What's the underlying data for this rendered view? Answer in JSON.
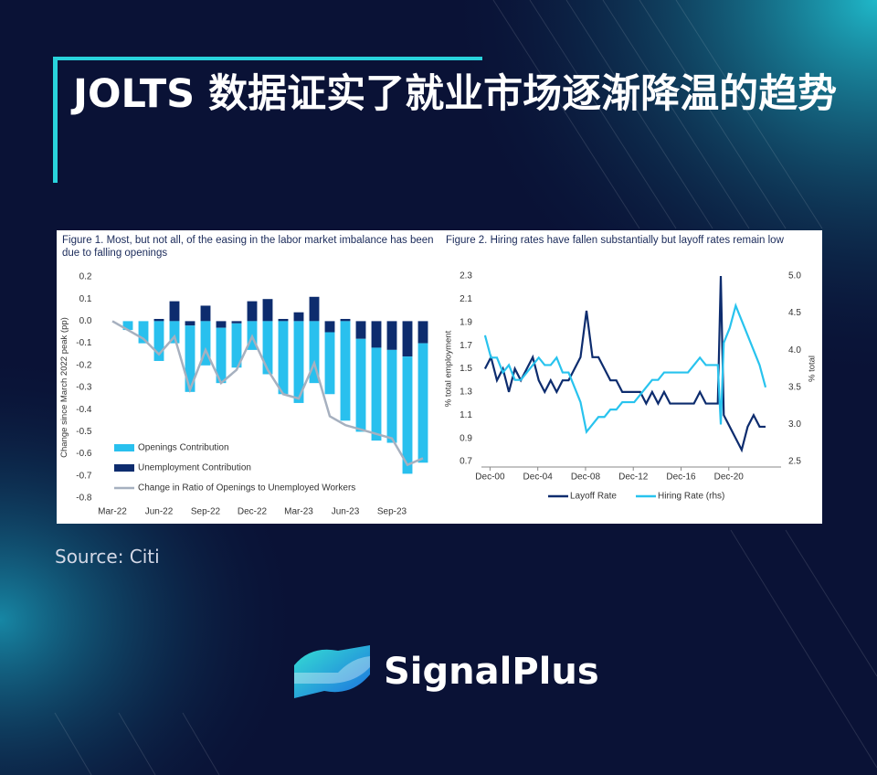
{
  "title": "JOLTS 数据证实了就业市场逐渐降温的趋势",
  "source": "Source: Citi",
  "brand": "SignalPlus",
  "chart_data": [
    {
      "type": "bar",
      "stacked": true,
      "title": "Figure 1. Most, but not all, of the easing in the labor market imbalance has been due to falling openings",
      "y_label": "Change since March 2022 peak (pp)",
      "categories": [
        "Mar-22",
        null,
        null,
        "Jun-22",
        null,
        null,
        "Sep-22",
        null,
        null,
        "Dec-22",
        null,
        null,
        "Mar-23",
        null,
        null,
        "Jun-23",
        null,
        null,
        "Sep-23",
        null,
        null
      ],
      "series": [
        {
          "name": "Openings Contribution",
          "color": "#29c0ee",
          "values": [
            0,
            -0.04,
            -0.1,
            -0.18,
            -0.1,
            -0.3,
            -0.2,
            -0.25,
            -0.2,
            -0.13,
            -0.24,
            -0.33,
            -0.37,
            -0.28,
            -0.28,
            -0.45,
            -0.42,
            -0.42,
            -0.42,
            -0.53,
            -0.54
          ]
        },
        {
          "name": "Unemployment Contribution",
          "color": "#0d2c6e",
          "values": [
            0,
            0,
            0,
            0.01,
            0.09,
            -0.02,
            0.07,
            -0.03,
            -0.01,
            0.09,
            0.1,
            0.01,
            0.04,
            0.11,
            -0.05,
            0.01,
            -0.08,
            -0.12,
            -0.13,
            -0.16,
            -0.1
          ]
        },
        {
          "name": "Change in Ratio of Openings to Unemployed Workers",
          "color": "#a6b0bf",
          "type": "line",
          "values": [
            0,
            -0.04,
            -0.08,
            -0.15,
            -0.07,
            -0.31,
            -0.13,
            -0.28,
            -0.22,
            -0.07,
            -0.22,
            -0.33,
            -0.35,
            -0.19,
            -0.43,
            -0.47,
            -0.49,
            -0.51,
            -0.53,
            -0.65,
            -0.62
          ]
        }
      ],
      "ylim": [
        -0.8,
        0.2
      ],
      "yticks": [
        0.2,
        0.1,
        {
          "value": 0,
          "label": "0.0"
        },
        -0.1,
        -0.2,
        -0.3,
        -0.4,
        -0.5,
        -0.6,
        -0.7,
        -0.8
      ]
    },
    {
      "type": "line",
      "title": "Figure 2. Hiring rates have fallen substantially but layoff rates remain low",
      "y_label": "% total employment",
      "y2_label": "% total",
      "x": [
        2000.5,
        2001,
        2001.5,
        2002,
        2002.5,
        2003,
        2003.5,
        2004,
        2004.5,
        2005,
        2005.5,
        2006,
        2006.5,
        2007,
        2007.5,
        2008,
        2008.5,
        2009,
        2009.5,
        2010,
        2010.5,
        2011,
        2011.5,
        2012,
        2012.5,
        2013,
        2013.5,
        2014,
        2014.5,
        2015,
        2015.5,
        2016,
        2016.5,
        2017,
        2017.5,
        2018,
        2018.5,
        2019,
        2019.5,
        2020,
        2020.25,
        2020.5,
        2021,
        2021.5,
        2022,
        2022.5,
        2023,
        2023.5,
        2024
      ],
      "series": [
        {
          "name": "Layoff Rate",
          "color": "#0d2c6e",
          "values": [
            1.5,
            1.6,
            1.4,
            1.5,
            1.3,
            1.5,
            1.4,
            1.5,
            1.6,
            1.4,
            1.3,
            1.4,
            1.3,
            1.4,
            1.4,
            1.5,
            1.6,
            2.0,
            1.6,
            1.6,
            1.5,
            1.4,
            1.4,
            1.3,
            1.3,
            1.3,
            1.3,
            1.2,
            1.3,
            1.2,
            1.3,
            1.2,
            1.2,
            1.2,
            1.2,
            1.2,
            1.3,
            1.2,
            1.2,
            1.2,
            2.3,
            1.1,
            1.0,
            0.9,
            0.8,
            1.0,
            1.1,
            1.0,
            1.0
          ]
        },
        {
          "name": "Hiring Rate (rhs)",
          "color": "#28c3ee",
          "axis": "y2",
          "values": [
            4.2,
            3.9,
            3.9,
            3.7,
            3.8,
            3.6,
            3.6,
            3.7,
            3.8,
            3.9,
            3.8,
            3.8,
            3.9,
            3.7,
            3.7,
            3.5,
            3.3,
            2.9,
            3.0,
            3.1,
            3.1,
            3.2,
            3.2,
            3.3,
            3.3,
            3.3,
            3.4,
            3.5,
            3.6,
            3.6,
            3.7,
            3.7,
            3.7,
            3.7,
            3.7,
            3.8,
            3.9,
            3.8,
            3.8,
            3.8,
            3.0,
            4.1,
            4.3,
            4.6,
            4.4,
            4.2,
            4.0,
            3.8,
            3.5
          ]
        }
      ],
      "xlim": [
        2000.2,
        2025.3
      ],
      "xticks": [
        {
          "value": 2000.92,
          "label": "Dec-00"
        },
        {
          "value": 2004.92,
          "label": "Dec-04"
        },
        {
          "value": 2008.92,
          "label": "Dec-08"
        },
        {
          "value": 2012.92,
          "label": "Dec-12"
        },
        {
          "value": 2016.92,
          "label": "Dec-16"
        },
        {
          "value": 2020.92,
          "label": "Dec-20"
        }
      ],
      "ylim": [
        0.7,
        2.3
      ],
      "yticks": [
        0.7,
        0.9,
        1.1,
        1.3,
        1.5,
        1.7,
        1.9,
        2.1,
        2.3
      ],
      "y2lim": [
        2.5,
        5.0
      ],
      "y2ticks": [
        2.5,
        {
          "value": 3,
          "label": "3.0"
        },
        3.5,
        {
          "value": 4,
          "label": "4.0"
        },
        4.5,
        {
          "value": 5,
          "label": "5.0"
        }
      ]
    }
  ]
}
